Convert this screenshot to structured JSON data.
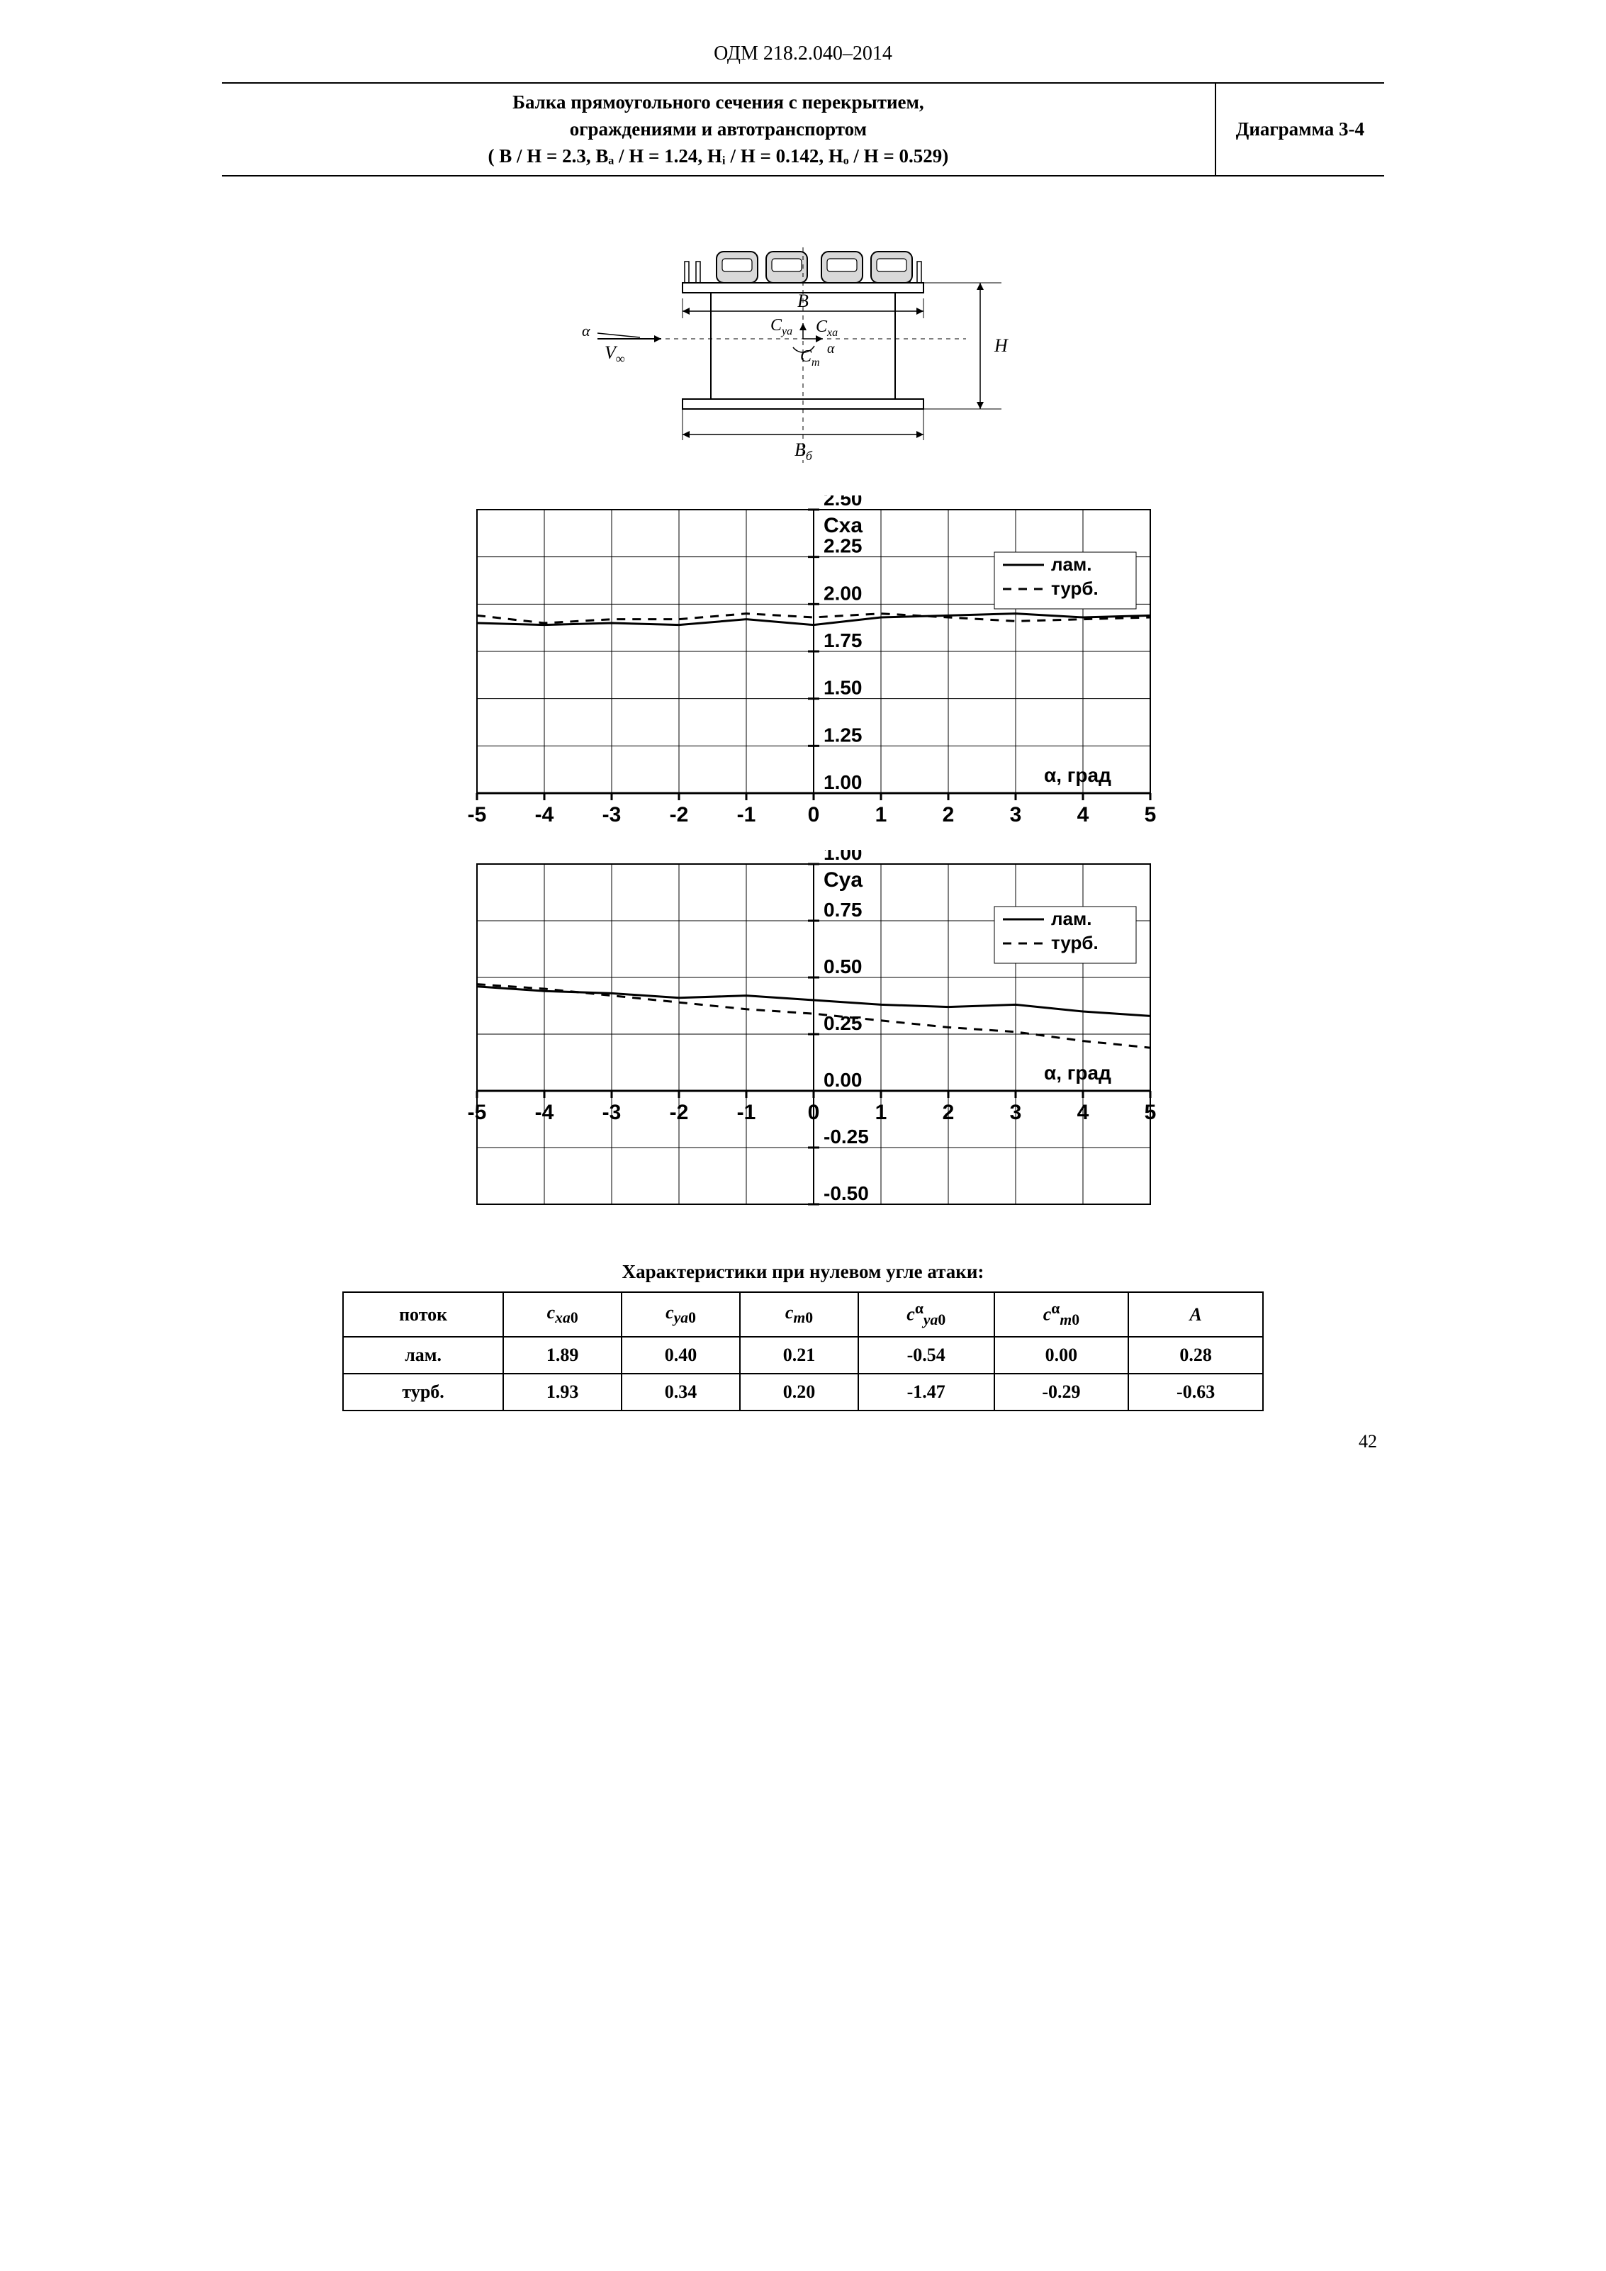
{
  "doc_code": "ОДМ 218.2.040–2014",
  "header": {
    "title_line1": "Балка прямоугольного сечения с перекрытием,",
    "title_line2": "ограждениями и автотранспортом",
    "params": "( B / H = 2.3,  Bₐ / H = 1.24,  Hᵢ / H = 0.142,  Hₒ / H = 0.529)",
    "diagram": "Диаграмма 3-4"
  },
  "schematic": {
    "labels": {
      "B": "B",
      "Bb": "Bб",
      "H": "H",
      "Vinf": "V∞",
      "alpha": "α",
      "Cya": "C",
      "Cya_sub": "ya",
      "Cxa": "C",
      "Cxa_sub": "xa",
      "Cm": "C",
      "Cm_sub": "m"
    },
    "stroke": "#000000"
  },
  "chart_cxa": {
    "title": "Cxa",
    "x": {
      "min": -5,
      "max": 5,
      "step": 1
    },
    "y": {
      "min": 1.0,
      "max": 2.5,
      "step": 0.25
    },
    "grid_color": "#000000",
    "bg": "#ffffff",
    "x_axis_label": "α, град",
    "legend": [
      {
        "label": "лам.",
        "dash": ""
      },
      {
        "label": "турб.",
        "dash": "12,10"
      }
    ],
    "series": [
      {
        "name": "lam",
        "dash": "",
        "points": [
          [
            -5,
            1.9
          ],
          [
            -4,
            1.89
          ],
          [
            -3,
            1.9
          ],
          [
            -2,
            1.89
          ],
          [
            -1,
            1.92
          ],
          [
            0,
            1.89
          ],
          [
            1,
            1.93
          ],
          [
            2,
            1.94
          ],
          [
            3,
            1.95
          ],
          [
            4,
            1.93
          ],
          [
            5,
            1.94
          ]
        ]
      },
      {
        "name": "turb",
        "dash": "12,10",
        "points": [
          [
            -5,
            1.94
          ],
          [
            -4,
            1.9
          ],
          [
            -3,
            1.92
          ],
          [
            -2,
            1.92
          ],
          [
            -1,
            1.95
          ],
          [
            0,
            1.93
          ],
          [
            1,
            1.95
          ],
          [
            2,
            1.93
          ],
          [
            3,
            1.91
          ],
          [
            4,
            1.92
          ],
          [
            5,
            1.93
          ]
        ]
      }
    ]
  },
  "chart_cya": {
    "title": "Cya",
    "x": {
      "min": -5,
      "max": 5,
      "step": 1
    },
    "y": {
      "min": -0.5,
      "max": 1.0,
      "step": 0.25
    },
    "grid_color": "#000000",
    "bg": "#ffffff",
    "x_axis_label": "α, град",
    "legend": [
      {
        "label": "лам.",
        "dash": ""
      },
      {
        "label": "турб.",
        "dash": "12,10"
      }
    ],
    "series": [
      {
        "name": "lam",
        "dash": "",
        "points": [
          [
            -5,
            0.46
          ],
          [
            -4,
            0.44
          ],
          [
            -3,
            0.43
          ],
          [
            -2,
            0.41
          ],
          [
            -1,
            0.42
          ],
          [
            0,
            0.4
          ],
          [
            1,
            0.38
          ],
          [
            2,
            0.37
          ],
          [
            3,
            0.38
          ],
          [
            4,
            0.35
          ],
          [
            5,
            0.33
          ]
        ]
      },
      {
        "name": "turb",
        "dash": "12,10",
        "points": [
          [
            -5,
            0.47
          ],
          [
            -4,
            0.45
          ],
          [
            -3,
            0.42
          ],
          [
            -2,
            0.39
          ],
          [
            -1,
            0.36
          ],
          [
            0,
            0.34
          ],
          [
            1,
            0.31
          ],
          [
            2,
            0.28
          ],
          [
            3,
            0.26
          ],
          [
            4,
            0.22
          ],
          [
            5,
            0.19
          ]
        ]
      }
    ]
  },
  "table": {
    "title": "Характеристики при нулевом угле атаки:",
    "columns": [
      "поток",
      "c_xa0",
      "c_ya0",
      "c_m0",
      "c_ya0_alpha",
      "c_m0_alpha",
      "A"
    ],
    "rows": [
      [
        "лам.",
        "1.89",
        "0.40",
        "0.21",
        "-0.54",
        "0.00",
        "0.28"
      ],
      [
        "турб.",
        "1.93",
        "0.34",
        "0.20",
        "-1.47",
        "-0.29",
        "-0.63"
      ]
    ]
  },
  "page_number": "42"
}
